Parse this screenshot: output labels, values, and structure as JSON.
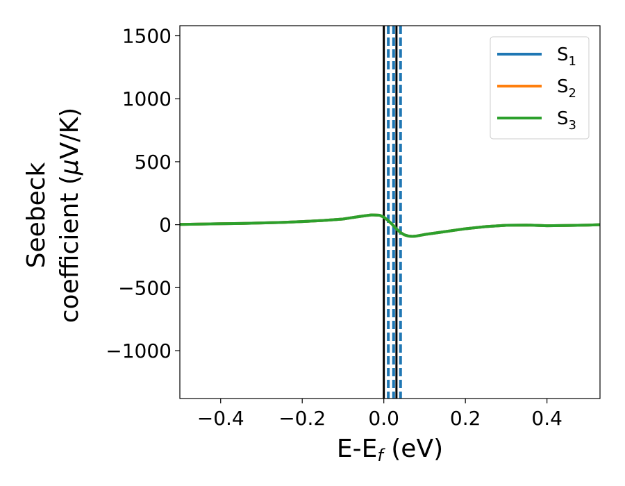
{
  "chart_data": {
    "type": "line",
    "title": "",
    "xlabel": {
      "main": "E-E",
      "sub": "f",
      "suffix": " (eV)"
    },
    "ylabel": {
      "line1": "Seebeck",
      "line2": "coefficient  (",
      "mu": "μ",
      "line2_end": "V/K)"
    },
    "xlim": [
      -0.5,
      0.53
    ],
    "ylim": [
      -1380,
      1580
    ],
    "xticks": [
      {
        "value": -0.4,
        "label": "−0.4"
      },
      {
        "value": -0.2,
        "label": "−0.2"
      },
      {
        "value": 0.0,
        "label": "0.0"
      },
      {
        "value": 0.2,
        "label": "0.2"
      },
      {
        "value": 0.4,
        "label": "0.4"
      }
    ],
    "yticks": [
      {
        "value": -1000,
        "label": "−1000"
      },
      {
        "value": -500,
        "label": "−500"
      },
      {
        "value": 0,
        "label": "0"
      },
      {
        "value": 500,
        "label": "500"
      },
      {
        "value": 1000,
        "label": "1000"
      },
      {
        "value": 1500,
        "label": "1500"
      }
    ],
    "grid": false,
    "legend_position": "top-right",
    "x": [
      -0.5,
      -0.45,
      -0.4,
      -0.35,
      -0.3,
      -0.25,
      -0.2,
      -0.15,
      -0.1,
      -0.06,
      -0.03,
      -0.01,
      0.0,
      0.01,
      0.02,
      0.03,
      0.04,
      0.05,
      0.06,
      0.07,
      0.08,
      0.1,
      0.15,
      0.2,
      0.25,
      0.3,
      0.35,
      0.4,
      0.45,
      0.5,
      0.53
    ],
    "series": [
      {
        "name": "S",
        "sub": "1",
        "color": "#1f77b4",
        "values": [
          2,
          5,
          8,
          10,
          14,
          18,
          25,
          33,
          45,
          65,
          78,
          75,
          60,
          35,
          5,
          -30,
          -60,
          -80,
          -90,
          -93,
          -90,
          -78,
          -55,
          -32,
          -15,
          -5,
          -3,
          -8,
          -6,
          -3,
          0
        ]
      },
      {
        "name": "S",
        "sub": "2",
        "color": "#ff7f0e",
        "values": [
          2,
          5,
          8,
          10,
          14,
          18,
          25,
          33,
          45,
          65,
          78,
          75,
          60,
          35,
          5,
          -30,
          -60,
          -80,
          -90,
          -93,
          -90,
          -78,
          -55,
          -32,
          -15,
          -5,
          -3,
          -8,
          -6,
          -3,
          0
        ]
      },
      {
        "name": "S",
        "sub": "3",
        "color": "#2ca02c",
        "values": [
          2,
          5,
          8,
          10,
          14,
          18,
          25,
          33,
          45,
          65,
          78,
          75,
          60,
          35,
          5,
          -30,
          -60,
          -80,
          -90,
          -93,
          -90,
          -78,
          -55,
          -32,
          -15,
          -5,
          -3,
          -8,
          -6,
          -3,
          0
        ]
      }
    ],
    "vlines": [
      {
        "x": 0.0,
        "color": "#000000",
        "style": "solid"
      },
      {
        "x": 0.031,
        "color": "#000000",
        "style": "solid"
      },
      {
        "x": 0.011,
        "color": "#1f77b4",
        "style": "dashed"
      },
      {
        "x": 0.024,
        "color": "#1f77b4",
        "style": "dashed"
      },
      {
        "x": 0.041,
        "color": "#1f77b4",
        "style": "dashed"
      }
    ]
  }
}
